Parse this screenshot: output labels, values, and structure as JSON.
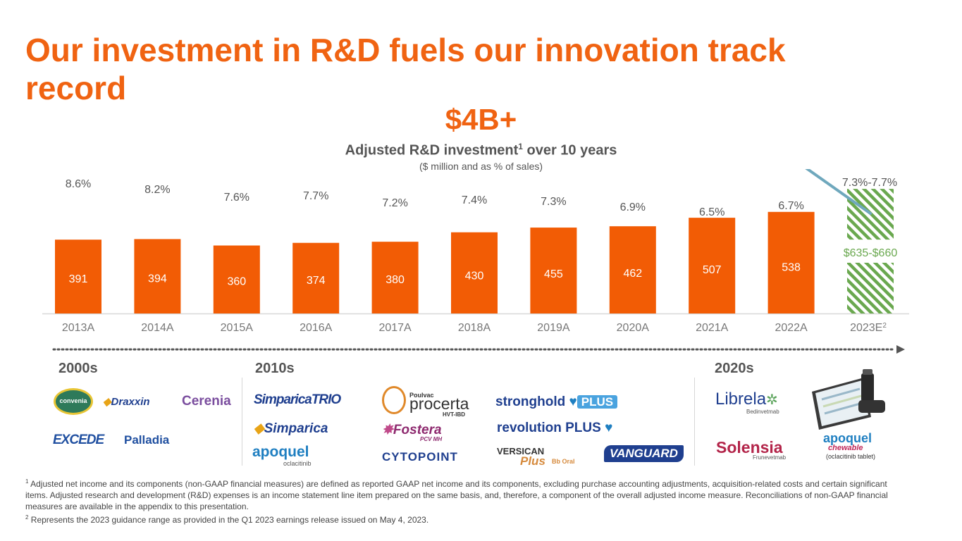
{
  "title": "Our investment in R&D fuels our innovation track record",
  "headline": "$4B+",
  "subtitle": {
    "text": "Adjusted R&D investment",
    "sup": "1",
    "suffix": " over 10 years"
  },
  "units": "($ million and as % of sales)",
  "chart_data": {
    "type": "bar",
    "categories": [
      "2013A",
      "2014A",
      "2015A",
      "2016A",
      "2017A",
      "2018A",
      "2019A",
      "2020A",
      "2021A",
      "2022A",
      "2023E"
    ],
    "category_sup": [
      "",
      "",
      "",
      "",
      "",
      "",
      "",
      "",
      "",
      "",
      "2"
    ],
    "values": [
      391,
      394,
      360,
      374,
      380,
      430,
      455,
      462,
      507,
      538,
      null
    ],
    "value_labels": [
      "391",
      "394",
      "360",
      "374",
      "380",
      "430",
      "455",
      "462",
      "507",
      "538",
      "$635-$660"
    ],
    "range_bar": {
      "index": 10,
      "low": 635,
      "high": 660,
      "style": "hatched"
    },
    "line_series": {
      "name": "% of sales",
      "values": [
        8.6,
        8.2,
        7.6,
        7.7,
        7.2,
        7.4,
        7.3,
        6.9,
        6.5,
        6.7,
        7.5
      ],
      "labels": [
        "8.6%",
        "8.2%",
        "7.6%",
        "7.7%",
        "7.2%",
        "7.4%",
        "7.3%",
        "6.9%",
        "6.5%",
        "6.7%",
        "7.3%-7.7%"
      ]
    },
    "title": "Adjusted R&D investment over 10 years",
    "ylabel": "$ million",
    "colors": {
      "bar": "#f25c05",
      "line": "#6fa8bd",
      "hatch": "#6aa84f",
      "axis_text": "#777777",
      "label": "#555555",
      "range_label": "#6aa84f"
    }
  },
  "arrow_color": "#555555",
  "eras": [
    {
      "label": "2000s",
      "logos": [
        "convenia",
        "Draxxin",
        "Cerenia",
        "EXCEDE",
        "Palladia"
      ]
    },
    {
      "label": "2010s",
      "logos": [
        "SimparicaTRIO",
        "Simparica",
        "apoquel",
        "oclacitinib",
        "Poulvac",
        "procerta",
        "HVT-IBD",
        "Fostera",
        "PCV MH",
        "CYTOPOINT",
        "stronghold",
        "PLUS",
        "revolution PLUS",
        "VERSICAN",
        "Plus",
        "Bb Oral",
        "VANGUARD"
      ]
    },
    {
      "label": "2020s",
      "logos": [
        "Librela",
        "Bedinvetmab",
        "Solensia",
        "Frunevetmab",
        "apoquel",
        "chewable",
        "(oclacitinib tablet)"
      ]
    }
  ],
  "footnotes": [
    {
      "sup": "1",
      "text": " Adjusted net income and its components (non-GAAP financial measures) are defined as reported GAAP net income and its components, excluding purchase accounting adjustments, acquisition-related costs and certain significant items. Adjusted research and development (R&D) expenses is an income statement line item prepared on the same basis, and, therefore, a component of the overall adjusted income measure. Reconciliations of non-GAAP financial measures are available in the appendix to this presentation."
    },
    {
      "sup": "2",
      "text": " Represents the 2023 guidance range as provided in the Q1 2023 earnings release issued on May 4, 2023."
    }
  ]
}
